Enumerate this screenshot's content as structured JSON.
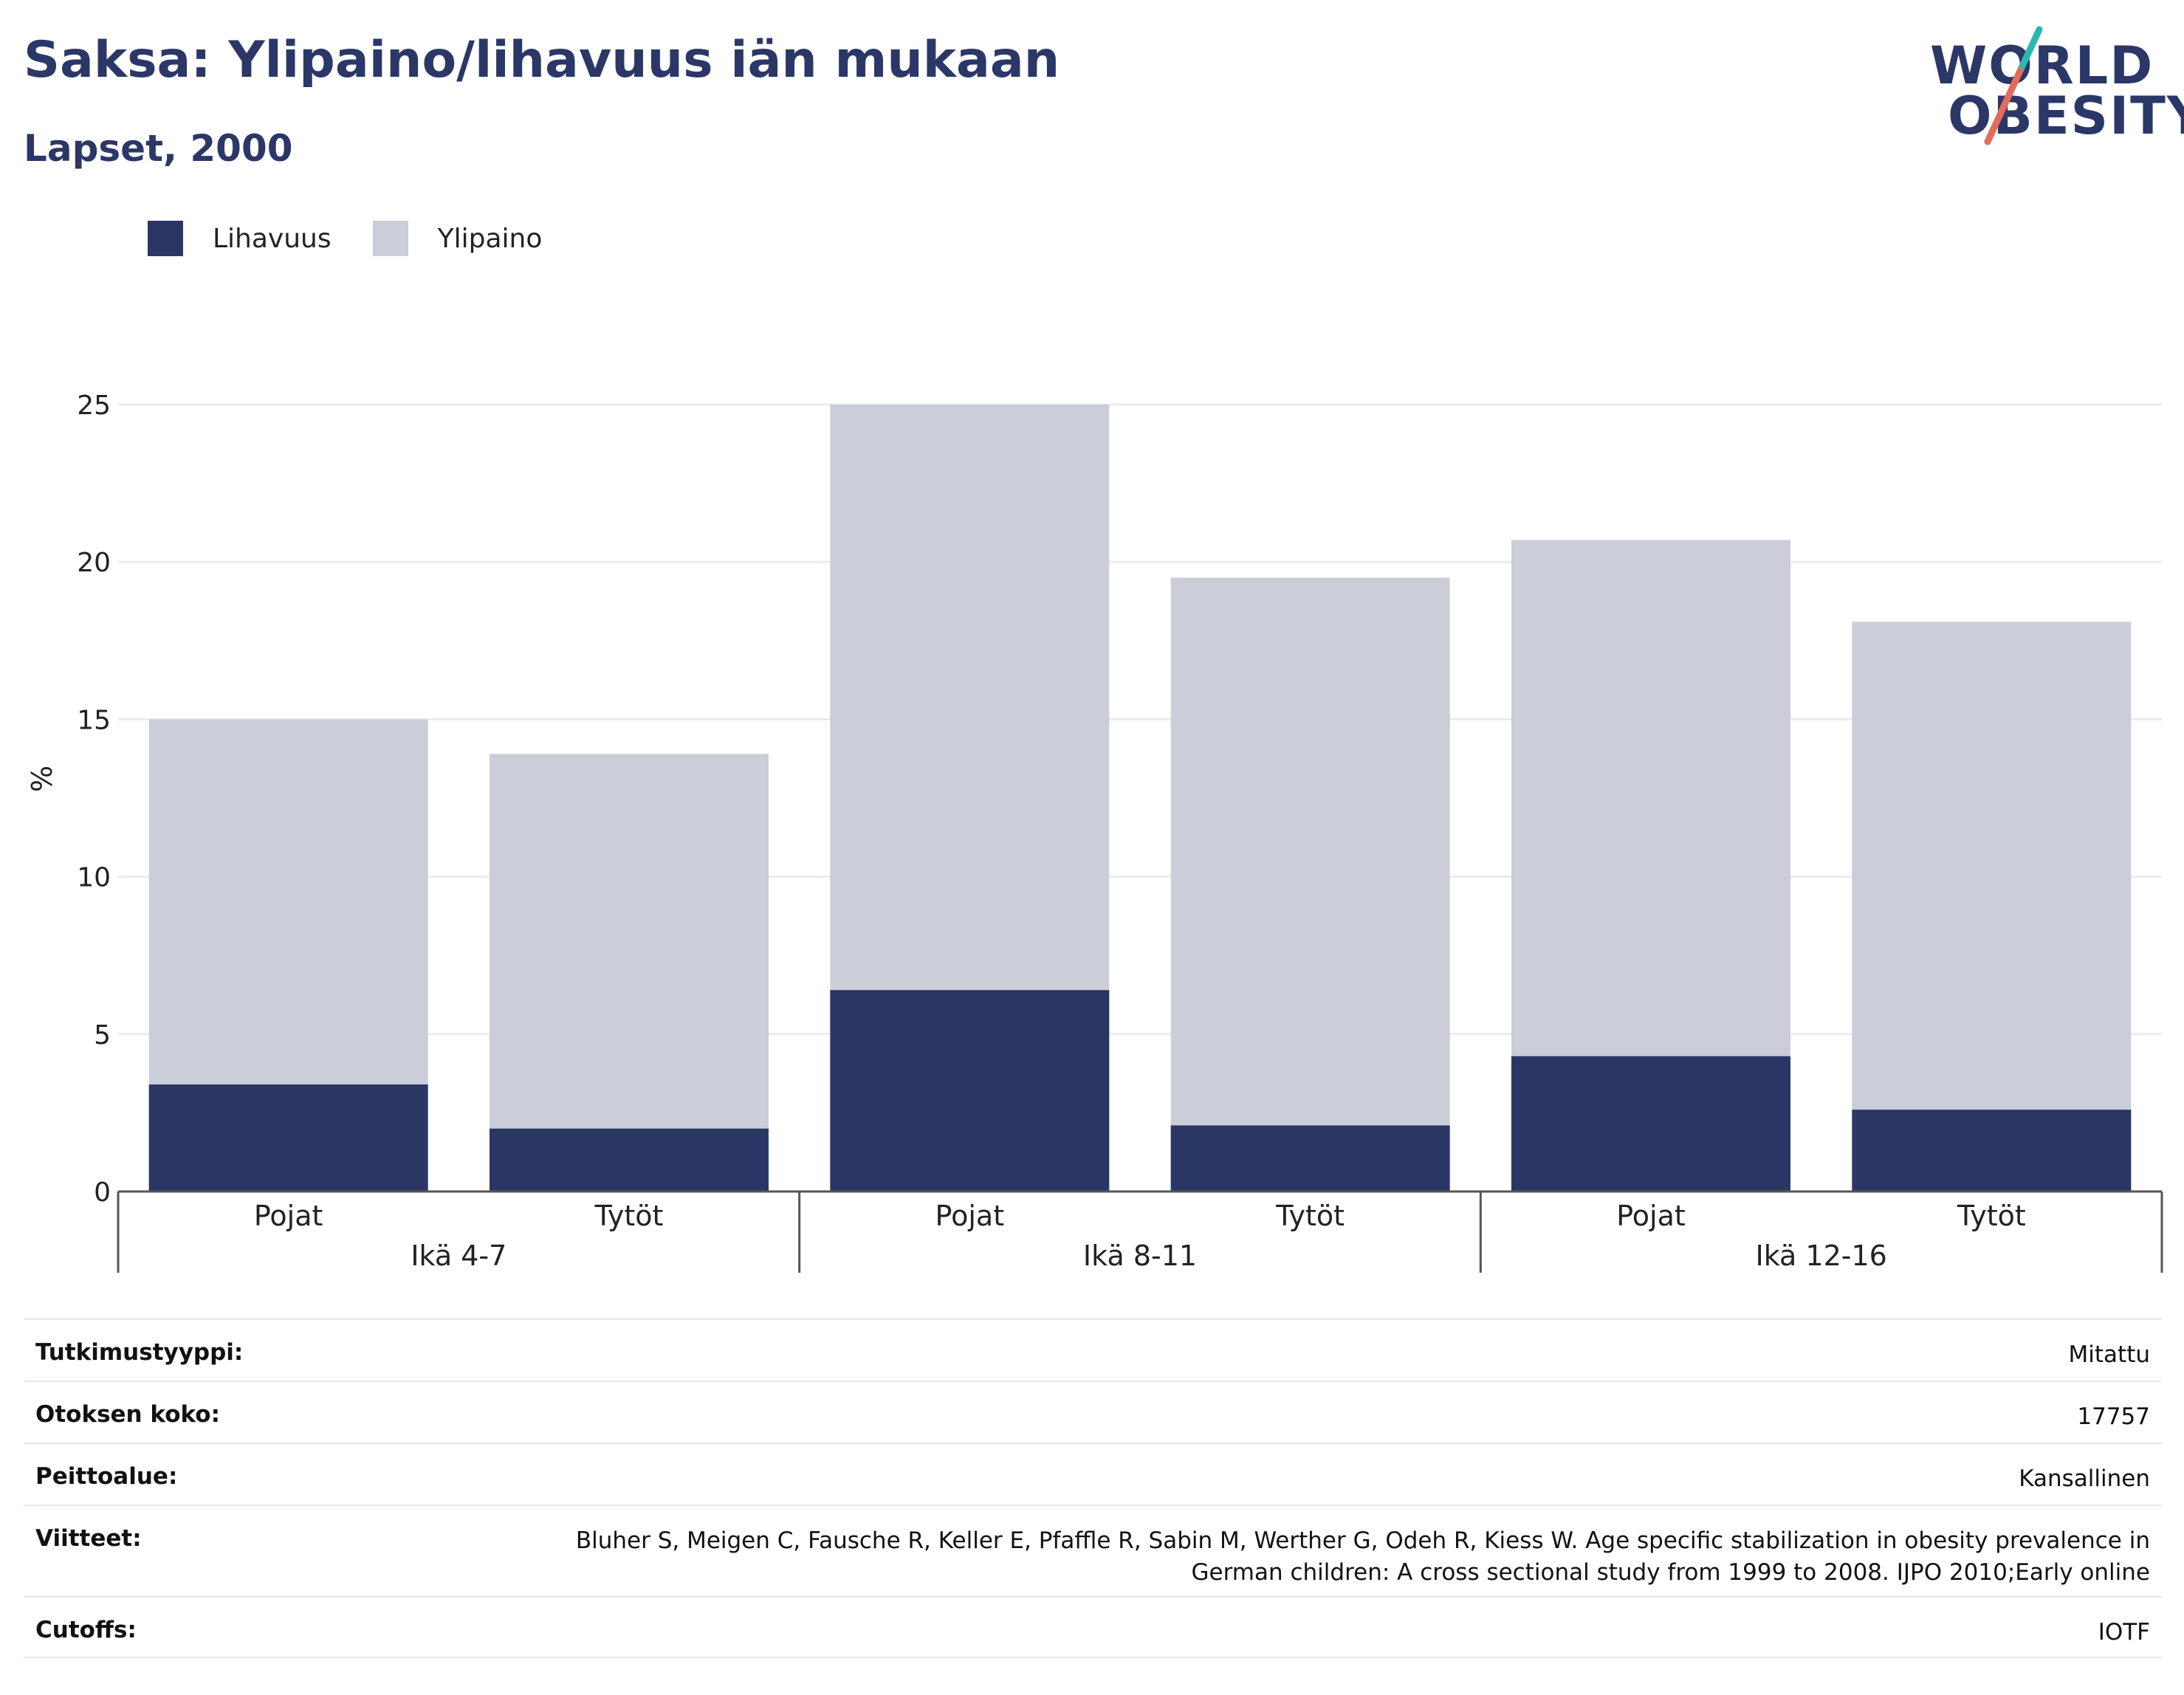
{
  "title": "Saksa: Ylipaino/lihavuus iän mukaan",
  "subtitle": "Lapset, 2000",
  "logo": {
    "line1": "WORLD",
    "line2": "OBESITY",
    "accent1": "#2bb8b3",
    "accent2": "#e56b5d"
  },
  "colors": {
    "obesity": "#2a3664",
    "overweight": "#cbcdd9",
    "grid": "#e9ebf1",
    "axis": "#555555",
    "text": "#111111"
  },
  "legend": [
    {
      "name": "Lihavuus",
      "color": "#2a3664"
    },
    {
      "name": "Ylipaino",
      "color": "#cbcdd9"
    }
  ],
  "chart_data": {
    "type": "bar",
    "stacked": true,
    "ylabel": "%",
    "ylim": [
      0,
      25
    ],
    "yticks": [
      0,
      5,
      10,
      15,
      20,
      25
    ],
    "grid": true,
    "legend_position": "top-left",
    "groups": [
      {
        "label": "Ikä 4-7",
        "categories": [
          "Pojat",
          "Tytöt"
        ]
      },
      {
        "label": "Ikä 8-11",
        "categories": [
          "Pojat",
          "Tytöt"
        ]
      },
      {
        "label": "Ikä 12-16",
        "categories": [
          "Pojat",
          "Tytöt"
        ]
      }
    ],
    "categories": [
      "Pojat",
      "Tytöt",
      "Pojat",
      "Tytöt",
      "Pojat",
      "Tytöt"
    ],
    "series": [
      {
        "name": "Lihavuus",
        "values": [
          3.4,
          2.0,
          6.4,
          2.1,
          4.3,
          2.6
        ]
      },
      {
        "name": "Ylipaino",
        "values": [
          11.6,
          11.9,
          18.6,
          17.4,
          16.4,
          15.5
        ]
      }
    ]
  },
  "info": [
    {
      "label": "Tutkimustyyppi:",
      "value": "Mitattu"
    },
    {
      "label": "Otoksen koko:",
      "value": "17757"
    },
    {
      "label": "Peittoalue:",
      "value": "Kansallinen"
    },
    {
      "label": "Viitteet:",
      "value": "Bluher S, Meigen C, Fausche R, Keller E, Pfaffle R, Sabin M, Werther G, Odeh R, Kiess W. Age specific stabilization in obesity prevalence in German children: A cross sectional study from 1999 to 2008. IJPO 2010;Early online"
    },
    {
      "label": "Cutoffs:",
      "value": "IOTF"
    }
  ]
}
